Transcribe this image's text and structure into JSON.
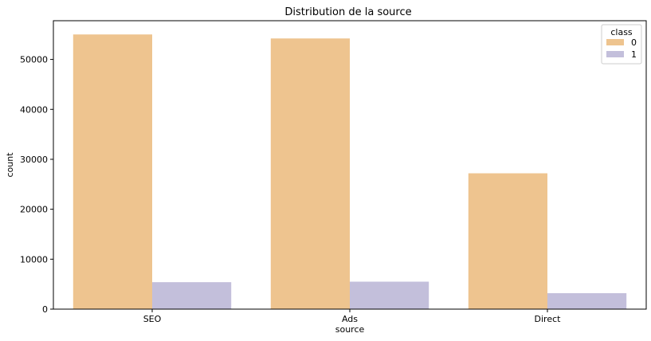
{
  "chart_data": {
    "type": "bar",
    "title": "Distribution de la source",
    "xlabel": "source",
    "ylabel": "count",
    "categories": [
      "SEO",
      "Ads",
      "Direct"
    ],
    "series": [
      {
        "name": "0",
        "values": [
          55000,
          54200,
          27200
        ],
        "color": "#eec48f"
      },
      {
        "name": "1",
        "values": [
          5400,
          5500,
          3200
        ],
        "color": "#c3bfdb"
      }
    ],
    "ylim": [
      0,
      57750
    ],
    "yticks": [
      0,
      10000,
      20000,
      30000,
      40000,
      50000
    ],
    "legend": {
      "title": "class",
      "placement": "top-right"
    },
    "grid": false
  }
}
